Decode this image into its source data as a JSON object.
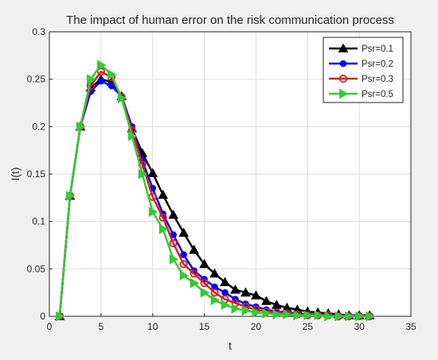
{
  "chart_data": {
    "type": "line",
    "title": "The impact of human error on the risk communication process",
    "xlabel": "t",
    "ylabel": "I(t)",
    "xlim": [
      0,
      35
    ],
    "ylim": [
      0,
      0.3
    ],
    "xticks": [
      "0",
      "5",
      "10",
      "15",
      "20",
      "25",
      "30",
      "35"
    ],
    "yticks": [
      "0",
      "0.05",
      "0.1",
      "0.15",
      "0.2",
      "0.25",
      "0.3"
    ],
    "grid": true,
    "legend_position": "top-right",
    "x": [
      1,
      2,
      3,
      4,
      5,
      6,
      7,
      8,
      9,
      10,
      11,
      12,
      13,
      14,
      15,
      16,
      17,
      18,
      19,
      20,
      21,
      22,
      23,
      24,
      25,
      26,
      27,
      28,
      29,
      30,
      31
    ],
    "series": [
      {
        "name": "Psr=0.1",
        "color": "#000000",
        "marker": "triangle-up",
        "values": [
          0,
          0.127,
          0.2,
          0.241,
          0.25,
          0.247,
          0.232,
          0.198,
          0.172,
          0.151,
          0.128,
          0.107,
          0.088,
          0.07,
          0.055,
          0.045,
          0.036,
          0.028,
          0.025,
          0.022,
          0.016,
          0.012,
          0.009,
          0.007,
          0.005,
          0.004,
          0.003,
          0.002,
          0.001,
          0.001,
          0.001
        ]
      },
      {
        "name": "Psr=0.2",
        "color": "#0000ff",
        "marker": "circle-filled",
        "values": [
          0,
          0.127,
          0.2,
          0.237,
          0.248,
          0.243,
          0.232,
          0.2,
          0.164,
          0.135,
          0.108,
          0.086,
          0.065,
          0.048,
          0.039,
          0.031,
          0.025,
          0.018,
          0.013,
          0.01,
          0.007,
          0.005,
          0.004,
          0.003,
          0.002,
          0.002,
          0.001,
          0.001,
          0.001,
          0.001,
          0.0
        ]
      },
      {
        "name": "Psr=0.3",
        "color": "#d62020",
        "marker": "circle-open",
        "values": [
          0,
          0.127,
          0.2,
          0.243,
          0.258,
          0.252,
          0.231,
          0.196,
          0.16,
          0.126,
          0.104,
          0.077,
          0.055,
          0.045,
          0.035,
          0.025,
          0.018,
          0.014,
          0.01,
          0.007,
          0.005,
          0.004,
          0.003,
          0.002,
          0.001,
          0.001,
          0.001,
          0.0,
          0.0,
          0.0,
          0.0
        ]
      },
      {
        "name": "Psr=0.5",
        "color": "#33cc33",
        "marker": "triangle-right",
        "values": [
          0,
          0.127,
          0.2,
          0.25,
          0.265,
          0.255,
          0.23,
          0.19,
          0.15,
          0.11,
          0.092,
          0.06,
          0.043,
          0.035,
          0.025,
          0.017,
          0.012,
          0.008,
          0.006,
          0.004,
          0.003,
          0.002,
          0.002,
          0.001,
          0.001,
          0.001,
          0.0,
          0.0,
          0.0,
          0.0,
          0.0
        ]
      }
    ]
  }
}
